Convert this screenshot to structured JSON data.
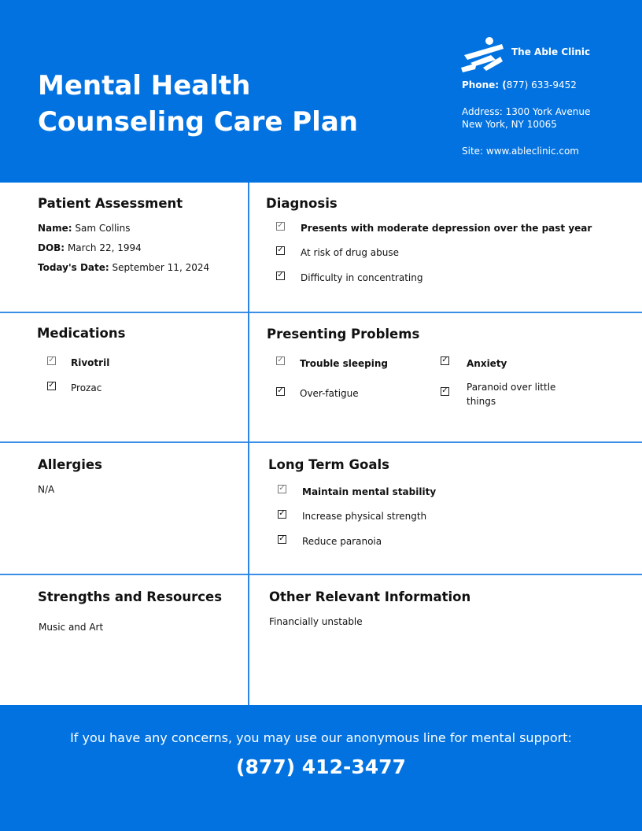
{
  "header": {
    "title_line1": "Mental Health",
    "title_line2": "Counseling Care Plan",
    "clinic_name": "The Able Clinic",
    "phone_label": "Phone: (",
    "phone_value": "877) 633-9452",
    "address_line1": "Address: 1300 York Avenue",
    "address_line2": "New York, NY 10065",
    "site": "Site: www.ableclinic.com"
  },
  "patient": {
    "heading": "Patient Assessment",
    "name_label": "Name:",
    "name": "Sam Collins",
    "dob_label": "DOB:",
    "dob": "March 22, 1994",
    "date_label": "Today's Date:",
    "date": "September 11, 2024"
  },
  "diagnosis": {
    "heading": "Diagnosis",
    "items": [
      "Presents with moderate depression over the past year",
      "At risk of drug abuse",
      "Difficulty in concentrating"
    ]
  },
  "medications": {
    "heading": "Medications",
    "items": [
      "Rivotril",
      "Prozac"
    ]
  },
  "problems": {
    "heading": "Presenting Problems",
    "items": [
      "Trouble sleeping",
      "Anxiety",
      "Over-fatigue",
      "Paranoid over little things"
    ]
  },
  "allergies": {
    "heading": "Allergies",
    "text": "N/A"
  },
  "goals": {
    "heading": "Long Term Goals",
    "items": [
      "Maintain mental stability",
      "Increase physical strength",
      "Reduce paranoia"
    ]
  },
  "strengths": {
    "heading": "Strengths and Resources",
    "text": "Music and Art"
  },
  "other": {
    "heading": "Other Relevant Information",
    "text": "Financially unstable"
  },
  "footer": {
    "note": "If you have any concerns, you may use our anonymous line for mental support:",
    "phone": "(877) 412-3477"
  },
  "colors": {
    "brand": "#0272e0"
  }
}
